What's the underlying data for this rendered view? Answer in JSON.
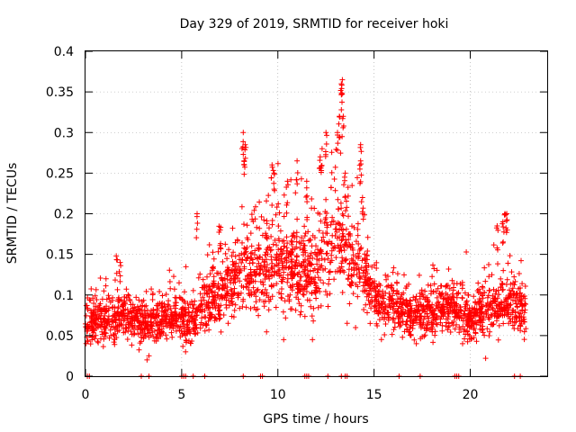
{
  "chart_data": {
    "type": "scatter",
    "title": "Day 329 of 2019, SRMTID for receiver hoki",
    "xlabel": "GPS time / hours",
    "ylabel": "SRMTID / TECUs",
    "xlim": [
      0,
      24
    ],
    "ylim": [
      0,
      0.4
    ],
    "x_ticks": [
      0,
      5,
      10,
      15,
      20
    ],
    "y_ticks": [
      0,
      0.05,
      0.1,
      0.15,
      0.2,
      0.25,
      0.3,
      0.35,
      0.4
    ],
    "x_tick_labels": [
      "0",
      "5",
      "10",
      "15",
      "20"
    ],
    "y_tick_labels": [
      "0",
      "0.05",
      "0.1",
      "0.15",
      "0.2",
      "0.25",
      "0.3",
      "0.35",
      "0.4"
    ],
    "grid": true,
    "marker": "plus",
    "series_color": "#ff0000",
    "series": [
      {
        "name": "SRMTID",
        "trend": {
          "x": [
            0,
            1,
            2,
            3,
            4,
            5,
            5.5,
            6,
            7,
            8,
            8.5,
            9,
            10,
            11,
            12,
            12.5,
            13,
            13.5,
            14,
            14.5,
            15,
            16,
            17,
            18,
            19,
            20,
            21,
            22,
            23
          ],
          "y": [
            0.065,
            0.07,
            0.075,
            0.065,
            0.07,
            0.07,
            0.065,
            0.09,
            0.1,
            0.12,
            0.14,
            0.13,
            0.14,
            0.13,
            0.13,
            0.16,
            0.17,
            0.16,
            0.14,
            0.12,
            0.1,
            0.085,
            0.075,
            0.08,
            0.085,
            0.07,
            0.08,
            0.09,
            0.08
          ]
        },
        "peaks": [
          {
            "x": 1.6,
            "y": 0.148
          },
          {
            "x": 1.8,
            "y": 0.14
          },
          {
            "x": 5.8,
            "y": 0.2
          },
          {
            "x": 7.0,
            "y": 0.18
          },
          {
            "x": 8.2,
            "y": 0.3
          },
          {
            "x": 8.3,
            "y": 0.285
          },
          {
            "x": 8.25,
            "y": 0.265
          },
          {
            "x": 9.7,
            "y": 0.26
          },
          {
            "x": 9.8,
            "y": 0.25
          },
          {
            "x": 10.5,
            "y": 0.24
          },
          {
            "x": 11.0,
            "y": 0.265
          },
          {
            "x": 11.5,
            "y": 0.24
          },
          {
            "x": 12.3,
            "y": 0.28
          },
          {
            "x": 12.5,
            "y": 0.3
          },
          {
            "x": 12.2,
            "y": 0.27
          },
          {
            "x": 13.2,
            "y": 0.32
          },
          {
            "x": 13.3,
            "y": 0.36
          },
          {
            "x": 13.35,
            "y": 0.365
          },
          {
            "x": 13.4,
            "y": 0.32
          },
          {
            "x": 13.1,
            "y": 0.3
          },
          {
            "x": 13.5,
            "y": 0.25
          },
          {
            "x": 14.3,
            "y": 0.285
          },
          {
            "x": 14.3,
            "y": 0.265
          },
          {
            "x": 14.4,
            "y": 0.22
          },
          {
            "x": 21.8,
            "y": 0.2
          },
          {
            "x": 21.9,
            "y": 0.2
          },
          {
            "x": 21.4,
            "y": 0.185
          },
          {
            "x": 21.7,
            "y": 0.19
          }
        ],
        "lows": [
          {
            "x": 3.2,
            "y": 0.02
          },
          {
            "x": 3.3,
            "y": 0.025
          },
          {
            "x": 5.2,
            "y": 0.03
          },
          {
            "x": 10.3,
            "y": 0.045
          },
          {
            "x": 20.8,
            "y": 0.022
          },
          {
            "x": 11.8,
            "y": 0.045
          },
          {
            "x": 13.6,
            "y": 0.065
          },
          {
            "x": 19.6,
            "y": 0.04
          },
          {
            "x": 17.2,
            "y": 0.04
          }
        ],
        "zero_x": [
          0.1,
          0.2,
          2.9,
          3.3,
          5.0,
          5.1,
          5.2,
          5.6,
          6.2,
          8.2,
          9.1,
          9.2,
          11.4,
          11.5,
          11.6,
          12.6,
          13.3,
          13.5,
          13.6,
          16.3,
          17.4,
          19.2,
          19.3,
          19.4,
          22.3,
          22.6
        ]
      }
    ]
  }
}
